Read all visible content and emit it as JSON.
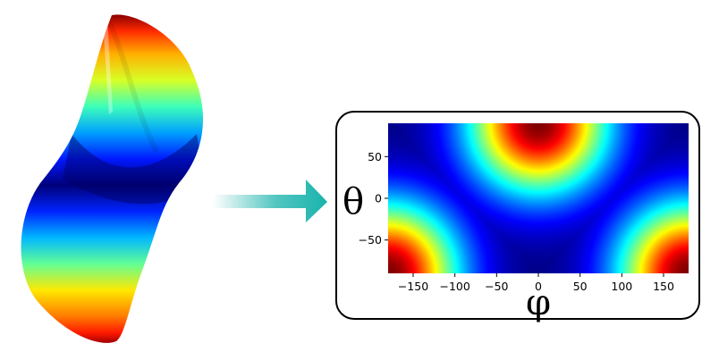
{
  "figure": {
    "panel": {
      "axis_x_symbol": "φ",
      "axis_y_symbol": "θ",
      "x_ticks": [
        "−150",
        "−100",
        "−50",
        "0",
        "50",
        "100",
        "150"
      ],
      "y_ticks": [
        "50",
        "0",
        "−50"
      ]
    },
    "colormap": "jet",
    "arrow_color": "#19b3ac"
  },
  "chart_data": {
    "type": "heatmap",
    "x": [
      -180,
      180
    ],
    "y": [
      -90,
      90
    ],
    "xlim": [
      -180,
      180
    ],
    "ylim": [
      -90,
      90
    ],
    "x_ticks": [
      -150,
      -100,
      -50,
      0,
      50,
      100,
      150
    ],
    "y_ticks": [
      -50,
      0,
      50
    ],
    "xlabel": "φ",
    "ylabel": "θ",
    "colormap": "jet",
    "maxima": [
      {
        "phi": 0,
        "theta": 90
      },
      {
        "phi": -180,
        "theta": -90
      },
      {
        "phi": 180,
        "theta": -90
      }
    ]
  }
}
